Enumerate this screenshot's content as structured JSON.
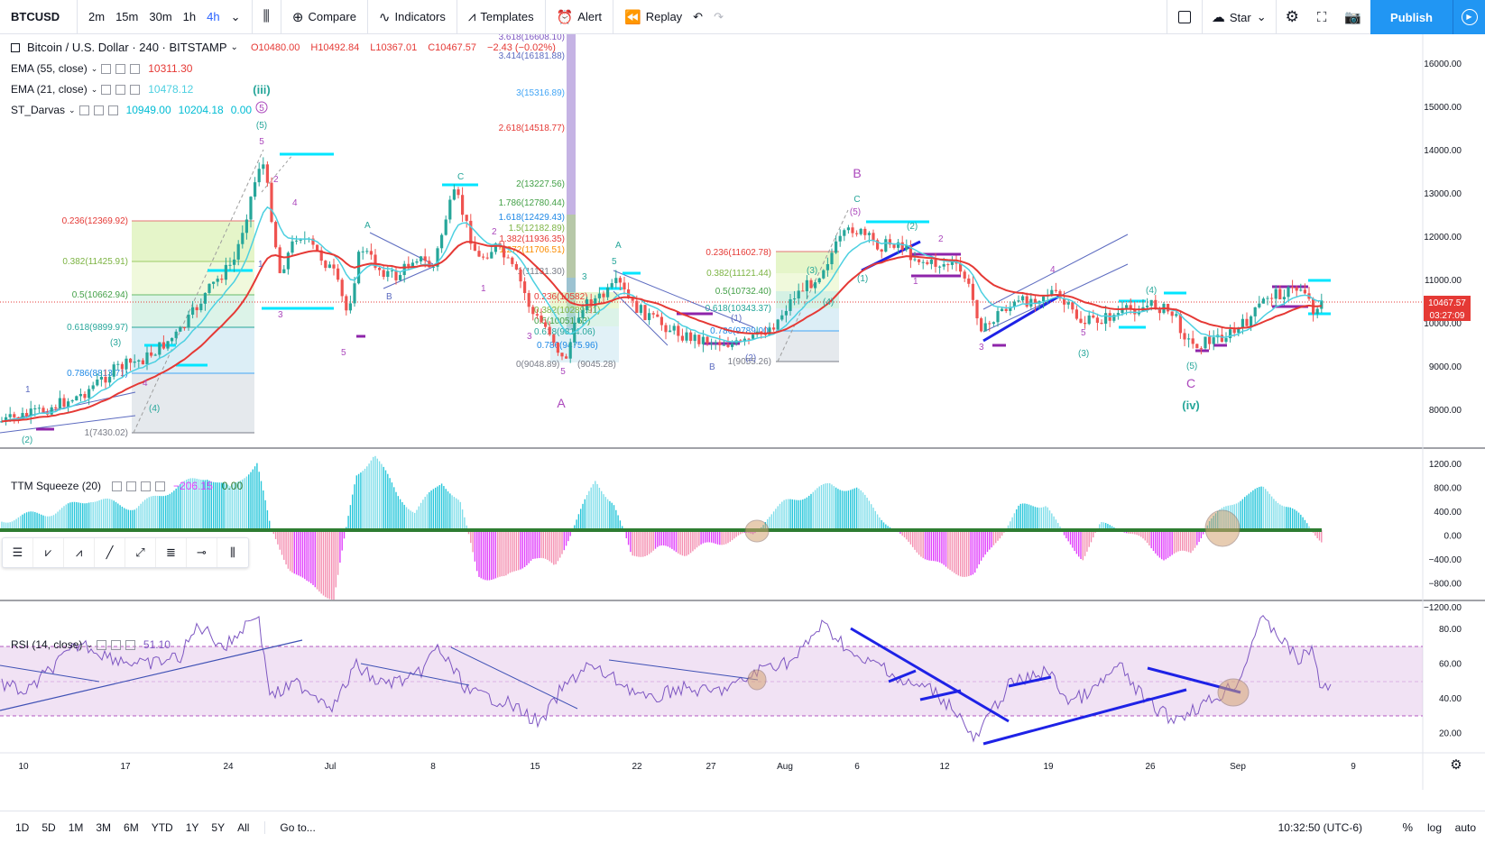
{
  "toolbar": {
    "symbol": "BTCUSD",
    "intervals": [
      "2m",
      "15m",
      "30m",
      "1h",
      "4h"
    ],
    "active_interval": "4h",
    "compare": "Compare",
    "indicators": "Indicators",
    "templates": "Templates",
    "alert": "Alert",
    "replay": "Replay",
    "star": "Star",
    "publish": "Publish"
  },
  "legend": {
    "title": "Bitcoin / U.S. Dollar · 240 · BITSTAMP",
    "ohlc": {
      "o": "O10480.00",
      "h": "H10492.84",
      "l": "L10367.01",
      "c": "C10467.57",
      "chg": "−2.43 (−0.02%)"
    },
    "ema55": {
      "label": "EMA (55, close)",
      "value": "10311.30",
      "color": "#e53935"
    },
    "ema21": {
      "label": "EMA (21, close)",
      "value": "10478.12",
      "color": "#4dd0e1"
    },
    "darvas": {
      "label": "ST_Darvas",
      "v1": "10949.00",
      "v2": "10204.18",
      "v3": "0.00"
    },
    "squeeze": {
      "label": "TTM Squeeze (20)",
      "v1": "−206.15",
      "v2": "0.00"
    },
    "rsi": {
      "label": "RSI (14, close)",
      "value": "51.10"
    }
  },
  "price_axis": {
    "labels": [
      "16000.00",
      "15000.00",
      "14000.00",
      "13000.00",
      "12000.00",
      "11000.00",
      "10000.00",
      "9000.00",
      "8000.00"
    ],
    "current_price": "10467.57",
    "countdown": "03:27:09"
  },
  "squeeze_axis": {
    "labels": [
      "1200.00",
      "800.00",
      "400.00",
      "0.00",
      "−400.00",
      "−800.00",
      "−1200.00"
    ]
  },
  "rsi_axis": {
    "labels": [
      "80.00",
      "60.00",
      "40.00",
      "20.00"
    ]
  },
  "time_axis": {
    "labels": [
      "10",
      "17",
      "24",
      "Jul",
      "8",
      "15",
      "22",
      "27",
      "Aug",
      "6",
      "12",
      "19",
      "26",
      "Sep",
      "9"
    ]
  },
  "fib_left": [
    "0.236(12369.92)",
    "0.382(11425.91)",
    "0.5(10662.94)",
    "0.618(9899.97)",
    "0.786(8813.71)",
    "1(7430.02)"
  ],
  "fib_ext": [
    "3.618(16608.10)",
    "3.414(16181.88)",
    "3(15316.89)",
    "2.618(14518.77)",
    "2(13227.56)",
    "1.786(12780.44)",
    "1.618(12429.43)",
    "1.5(12182.89)",
    "1.382(11936.35)",
    "1.272(11706.51)",
    "1(11131.30)"
  ],
  "fib_mid": [
    "0.236(10582)",
    "0.382(10289.91)",
    "0.5(10051.53)",
    "0.618(9814.06)",
    "0.786(9475.96)",
    "0(9048.89)",
    "(9045.28)"
  ],
  "fib_right": [
    "0.236(11602.78)",
    "0.382(11121.44)",
    "0.5(10732.40)",
    "0.618(10343.37)",
    "0.786(9789.00)",
    "1(9055.26)"
  ],
  "waves": {
    "iii": "(iii)",
    "iv": "(iv)",
    "A": "A",
    "B": "B",
    "C": "C",
    "c5": "5",
    "p5": "(5)",
    "n1": "1",
    "n2": "2",
    "n3": "3",
    "n4": "4",
    "n5": "5",
    "pa": "A",
    "pb": "B",
    "pc": "C",
    "p1": "(1)",
    "p2": "(2)",
    "p3": "(3)",
    "p4": "(4)"
  },
  "bottom": {
    "ranges": [
      "1D",
      "5D",
      "1M",
      "3M",
      "6M",
      "YTD",
      "1Y",
      "5Y",
      "All"
    ],
    "goto": "Go to...",
    "clock": "10:32:50 (UTC-6)",
    "pct": "%",
    "log": "log",
    "auto": "auto"
  }
}
